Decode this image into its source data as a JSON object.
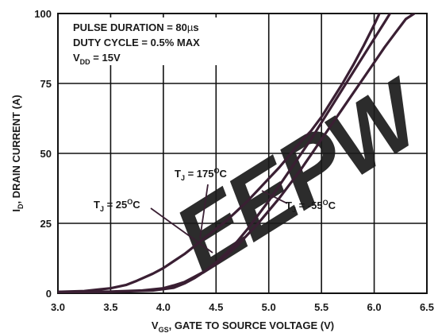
{
  "chart_data": {
    "type": "line",
    "title": "",
    "xlabel": {
      "main": "V",
      "sub": "GS",
      "rest": ", GATE TO SOURCE VOLTAGE (V)"
    },
    "ylabel": {
      "main": "I",
      "sub": "D",
      "rest": ", DRAIN CURRENT (A)"
    },
    "xlim": [
      3.0,
      6.5
    ],
    "ylim": [
      0,
      100
    ],
    "xticks": [
      "3.0",
      "3.5",
      "4.0",
      "4.5",
      "5.0",
      "5.5",
      "6.0",
      "6.5"
    ],
    "yticks": [
      "0",
      "25",
      "50",
      "75",
      "100"
    ],
    "grid": true,
    "conditions": [
      {
        "main": "PULSE DURATION = 80",
        "sym": "µ",
        "rest": "s"
      },
      {
        "main": "DUTY CYCLE = 0.5% MAX",
        "sym": "",
        "rest": ""
      },
      {
        "main": "V",
        "sub": "DD",
        "rest": " = 15V"
      }
    ],
    "series": [
      {
        "name": "T_J = 25°C",
        "label": {
          "pre": "T",
          "sub": "J",
          "mid": " = 25",
          "sup": "O",
          "post": "C"
        },
        "x": [
          3.0,
          3.25,
          3.5,
          3.65,
          3.75,
          3.9,
          4.0,
          4.1,
          4.2,
          4.3,
          4.4,
          4.5,
          4.6,
          4.7,
          4.8,
          4.9,
          5.0,
          5.1,
          5.2,
          5.3,
          5.4,
          5.5,
          5.6,
          5.7,
          5.8,
          5.9,
          6.0,
          6.05
        ],
        "y": [
          0.5,
          0.8,
          1.8,
          3.0,
          4.5,
          7.0,
          9.0,
          11.5,
          14.0,
          17.0,
          20.0,
          23.0,
          26.0,
          29.5,
          33.0,
          37.0,
          41.0,
          45.0,
          49.5,
          54.0,
          58.0,
          63.0,
          69.0,
          75.0,
          81.5,
          88.5,
          96.0,
          100
        ]
      },
      {
        "name": "T_J = 175°C",
        "label": {
          "pre": "T",
          "sub": "J",
          "mid": " = 175",
          "sup": "O",
          "post": "C"
        },
        "x": [
          3.0,
          3.5,
          3.8,
          4.0,
          4.1,
          4.2,
          4.3,
          4.4,
          4.5,
          4.6,
          4.7,
          4.8,
          4.9,
          5.0,
          5.1,
          5.2,
          5.3,
          5.4,
          5.5,
          5.6,
          5.7,
          5.8,
          5.9,
          6.0,
          6.1,
          6.2,
          6.3,
          6.38
        ],
        "y": [
          0.5,
          0.6,
          1.0,
          1.8,
          2.8,
          4.0,
          6.0,
          8.0,
          10.5,
          13.5,
          17.0,
          21.0,
          25.0,
          29.5,
          34.0,
          39.0,
          44.0,
          49.5,
          55.0,
          60.5,
          66.0,
          71.5,
          77.0,
          82.5,
          88.0,
          93.0,
          98.0,
          100
        ]
      },
      {
        "name": "T_J = -55°C",
        "label": {
          "pre": "T",
          "sub": "J",
          "mid": " = -55",
          "sup": "O",
          "post": "C"
        },
        "x": [
          3.0,
          3.5,
          3.9,
          4.1,
          4.2,
          4.3,
          4.4,
          4.5,
          4.6,
          4.7,
          4.8,
          4.9,
          5.0,
          5.1,
          5.2,
          5.3,
          5.4,
          5.5,
          5.6,
          5.7,
          5.8,
          5.9,
          6.0,
          6.1,
          6.15
        ],
        "y": [
          0.4,
          0.5,
          1.0,
          2.0,
          3.5,
          5.5,
          8.0,
          11.0,
          14.5,
          18.5,
          23.0,
          28.0,
          33.0,
          38.5,
          44.0,
          49.5,
          55.0,
          61.0,
          67.0,
          73.0,
          79.0,
          85.0,
          91.0,
          97.0,
          100
        ]
      }
    ],
    "watermark": "EEPW",
    "colors": {
      "curve": "#3a1f33",
      "grid": "#111111",
      "watermark": "#e8191c",
      "text": "#1a1a1a"
    }
  }
}
